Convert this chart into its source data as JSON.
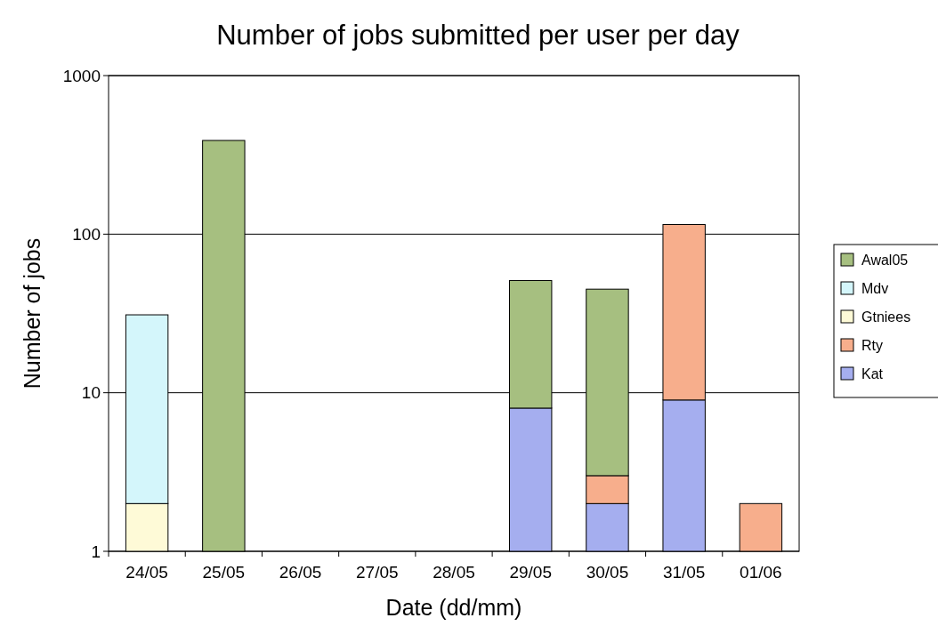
{
  "chart_data": {
    "type": "bar",
    "title": "Number of jobs submitted per user per day",
    "xlabel": "Date (dd/mm)",
    "ylabel": "Number of jobs",
    "categories": [
      "24/05",
      "25/05",
      "26/05",
      "27/05",
      "28/05",
      "29/05",
      "30/05",
      "31/05",
      "01/06"
    ],
    "stacked": true,
    "log": "y",
    "ylim": [
      1,
      1000
    ],
    "yticks": [
      1,
      10,
      100,
      1000
    ],
    "grid": "y",
    "legend": "right",
    "series": [
      {
        "name": "Kat",
        "color": "#a5aeef",
        "values": [
          null,
          null,
          null,
          null,
          null,
          8,
          2,
          9,
          null
        ]
      },
      {
        "name": "Rty",
        "color": "#f7ae8c",
        "values": [
          null,
          null,
          null,
          null,
          null,
          null,
          1,
          106,
          2
        ]
      },
      {
        "name": "Gtniees",
        "color": "#fefad7",
        "values": [
          2,
          null,
          null,
          null,
          null,
          null,
          null,
          null,
          null
        ]
      },
      {
        "name": "Mdv",
        "color": "#d4f6fb",
        "values": [
          29,
          null,
          null,
          null,
          null,
          null,
          null,
          null,
          null
        ]
      },
      {
        "name": "Awal05",
        "color": "#a6bf80",
        "values": [
          null,
          390,
          null,
          null,
          null,
          43,
          42,
          null,
          null
        ]
      }
    ]
  }
}
